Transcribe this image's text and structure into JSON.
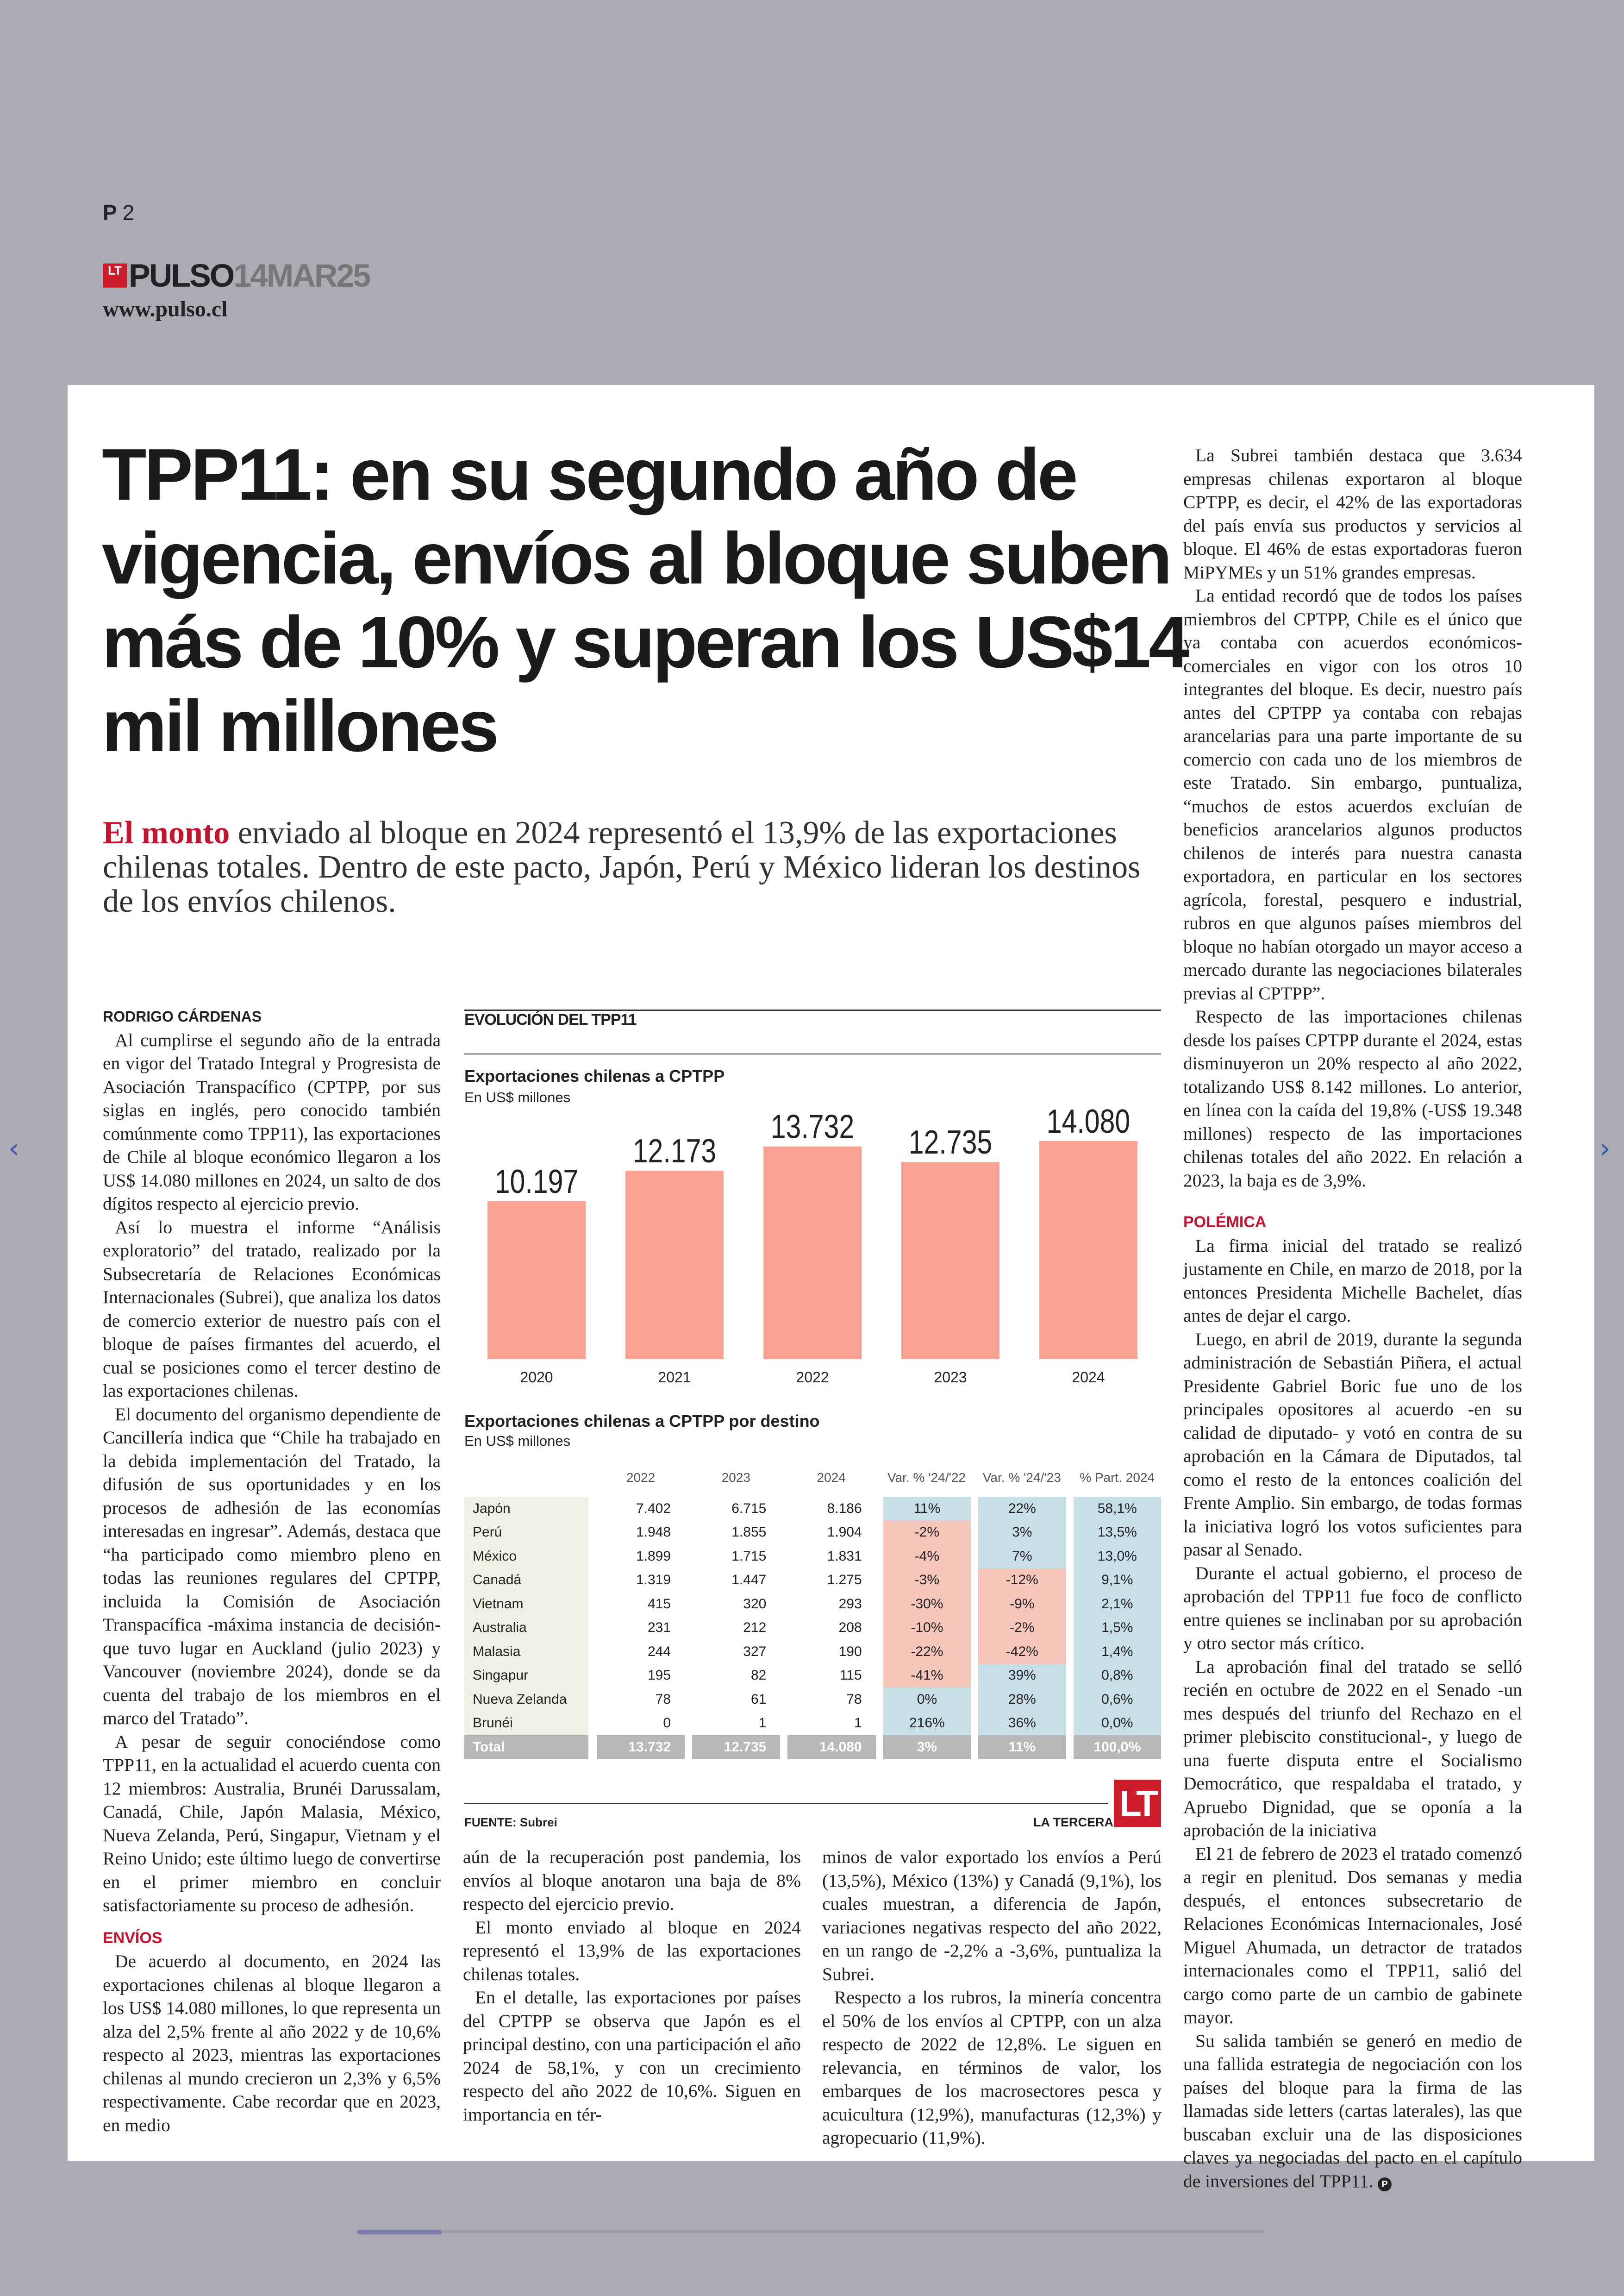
{
  "page": {
    "prefix": "P",
    "number": "2"
  },
  "masthead": {
    "logo": "LT",
    "name": "PULSO",
    "date": "14MAR25",
    "url": "www.pulso.cl"
  },
  "nav": {
    "prev_icon": "chevron-left-icon",
    "next_icon": "chevron-right-icon"
  },
  "article": {
    "headline": "TPP11: en su segundo año de vigencia, envíos al bloque suben más de 10% y superan los US$14 mil millones",
    "lead_bold": "El monto",
    "lead_rest": " enviado al bloque en 2024 representó el 13,9% de las exportaciones chilenas totales. Dentro de este pacto, Japón, Perú y México lideran los destinos de los envíos chilenos.",
    "byline": "RODRIGO CÁRDENAS",
    "col_left": [
      "Al cumplirse el segundo año de la entrada en vigor del Tratado Integral y Progresista de Asociación Transpacífico (CPTPP, por sus siglas en inglés, pero conocido también comúnmente como TPP11), las exportaciones de Chile al bloque económico llegaron a los US$ 14.080 millones en 2024, un salto de dos dígitos respecto al ejercicio previo.",
      "Así lo muestra el informe “Análisis exploratorio” del tratado, realizado por la Subsecretaría de Relaciones Económicas Internacionales (Subrei), que analiza los datos de comercio exterior de nuestro país con el bloque de países firmantes del acuerdo, el cual se posiciones como el tercer destino de las exportaciones chilenas.",
      "El documento del organismo dependiente de Cancillería indica que “Chile ha trabajado en la debida implementación del Tratado, la difusión de sus oportunidades y en los procesos de adhesión de las economías interesadas en ingresar”. Además, destaca que “ha participado como miembro pleno en todas las reuniones regulares del CPTPP, incluida la Comisión de Asociación Transpacífica -máxima instancia de decisión- que tuvo lugar en Auckland (julio 2023) y Vancouver (noviembre 2024), donde se da cuenta del trabajo de los miembros en el marco del Tratado”.",
      "A pesar de seguir conociéndose como TPP11, en la actualidad el acuerdo cuenta con 12 miembros: Australia, Brunéi Darussalam, Canadá, Chile, Japón Malasia, México, Nueva Zelanda, Perú, Singapur, Vietnam y el Reino Unido; este último luego de convertirse en el primer miembro en concluir satisfactoriamente su proceso de adhesión."
    ],
    "sub_envios": "ENVÍOS",
    "col_left_2": "De acuerdo al documento, en 2024 las exportaciones chilenas al bloque llegaron a los US$ 14.080 millones, lo que representa un alza del 2,5% frente al año 2022 y de 10,6% respecto al 2023, mientras las exportaciones chilenas al mundo crecieron un 2,3% y 6,5% respectivamente. Cabe recordar que en 2023, en medio",
    "col_mid_1": [
      "aún de la recuperación post pandemia, los envíos al bloque anotaron una baja de 8% respecto del ejercicio previo.",
      "El monto enviado al bloque en 2024 representó el 13,9% de las exportaciones chilenas totales.",
      "En el detalle, las exportaciones por países del CPTPP se observa que Japón es el principal destino, con una participación el año 2024 de 58,1%, y con un crecimiento respecto del año 2022 de 10,6%. Siguen en importancia en tér-"
    ],
    "col_mid_2": [
      "minos de valor exportado los envíos a Perú (13,5%), México (13%) y Canadá (9,1%), los cuales muestran, a diferencia de Japón, variaciones negativas respecto del año 2022, en un rango de -2,2% a -3,6%, puntualiza la Subrei.",
      "Respecto a los rubros, la minería concentra el 50% de los envíos al CPTPP, con un alza respecto de 2022 de 12,8%. Le siguen en relevancia, en términos de valor, los embarques de los macrosectores pesca y acuicultura (12,9%), manufacturas (12,3%) y agropecuario (11,9%)."
    ],
    "col_right": [
      "La Subrei también destaca que 3.634 empresas chilenas exportaron al bloque CPTPP, es decir, el 42% de las exportadoras del país envía sus productos y servicios al bloque. El 46% de estas exportadoras fueron MiPYMEs y un 51% grandes empresas.",
      "La entidad recordó que de todos los países miembros del CPTPP, Chile es el único que ya contaba con acuerdos económicos-comerciales en vigor con los otros 10 integrantes del bloque. Es decir, nuestro país antes del CPTPP ya contaba con rebajas arancelarias para una parte importante de su comercio con cada uno de los miembros de este Tratado. Sin embargo, puntualiza, “muchos de estos acuerdos excluían de beneficios arancelarios algunos productos chilenos de interés para nuestra canasta exportadora, en particular en los sectores agrícola, forestal, pesquero e industrial, rubros en que algunos países miembros del bloque no habían otorgado un mayor acceso a mercado durante las negociaciones bilaterales previas al CPTPP”.",
      "Respecto de las importaciones chilenas desde los países CPTPP durante el 2024, estas disminuyeron un 20% respecto al año 2022, totalizando US$ 8.142 millones. Lo anterior, en línea con la caída del 19,8% (-US$ 19.348 millones) respecto de las importaciones chilenas totales del año 2022. En relación a 2023, la baja es de 3,9%."
    ],
    "sub_polemica": "POLÉMICA",
    "col_right_2": [
      "La firma inicial del tratado se realizó justamente en Chile, en marzo de 2018, por la entonces Presidenta Michelle Bachelet, días antes de dejar el cargo.",
      "Luego, en abril de 2019, durante la segunda administración de Sebastián Piñera, el actual Presidente Gabriel Boric fue uno de los principales opositores al acuerdo -en su calidad de diputado- y votó en contra de su aprobación en la Cámara de Diputados, tal como el resto de la entonces coalición del Frente Amplio. Sin embargo, de todas formas la iniciativa logró los votos suficientes para pasar al Senado.",
      "Durante el actual gobierno, el proceso de aprobación del TPP11 fue foco de conflicto entre quienes se inclinaban por su aprobación y otro sector más crítico.",
      "La aprobación final del tratado se selló recién en octubre de 2022 en el Senado -un mes después del triunfo del Rechazo en el primer plebiscito constitucional-, y luego de una fuerte disputa entre el Socialismo Democrático, que respaldaba el tratado, y Apruebo Dignidad, que se oponía a la aprobación de la iniciativa",
      "El 21 de febrero de 2023 el tratado comenzó a regir en plenitud. Dos semanas y media después, el entonces subsecretario de Relaciones Económicas Internacionales, José Miguel Ahumada, un detractor de tratados internacionales como el TPP11, salió del cargo como parte de un cambio de gabinete mayor.",
      "Su salida también se generó en medio de una fallida estrategia de negociación con los países del bloque para la firma de las llamadas side letters (cartas laterales), las que buscaban excluir una de las disposiciones claves ya negociadas del pacto en el capítulo de inversiones del TPP11."
    ],
    "end_mark": "P"
  },
  "infographic": {
    "title": "EVOLUCIÓN DEL TPP11",
    "chart1_title": "Exportaciones chilenas a CPTPP",
    "chart1_unit": "En US$ millones",
    "chart2_title": "Exportaciones chilenas a CPTPP por destino",
    "chart2_unit": "En US$ millones",
    "source": "FUENTE: Subrei",
    "credit": "LA TERCERA",
    "credit_logo": "LT",
    "bar_color": "#f9a395",
    "table": {
      "headers": [
        "2022",
        "2023",
        "2024",
        "Var. % '24/'22",
        "Var. % '24/'23",
        "% Part. 2024"
      ],
      "rows": [
        [
          "Japón",
          "7.402",
          "6.715",
          "8.186",
          "11%",
          "22%",
          "58,1%"
        ],
        [
          "Perú",
          "1.948",
          "1.855",
          "1.904",
          "-2%",
          "3%",
          "13,5%"
        ],
        [
          "México",
          "1.899",
          "1.715",
          "1.831",
          "-4%",
          "7%",
          "13,0%"
        ],
        [
          "Canadá",
          "1.319",
          "1.447",
          "1.275",
          "-3%",
          "-12%",
          "9,1%"
        ],
        [
          "Vietnam",
          "415",
          "320",
          "293",
          "-30%",
          "-9%",
          "2,1%"
        ],
        [
          "Australia",
          "231",
          "212",
          "208",
          "-10%",
          "-2%",
          "1,5%"
        ],
        [
          "Malasia",
          "244",
          "327",
          "190",
          "-22%",
          "-42%",
          "1,4%"
        ],
        [
          "Singapur",
          "195",
          "82",
          "115",
          "-41%",
          "39%",
          "0,8%"
        ],
        [
          "Nueva Zelanda",
          "78",
          "61",
          "78",
          "0%",
          "28%",
          "0,6%"
        ],
        [
          "Brunéi",
          "0",
          "1",
          "1",
          "216%",
          "36%",
          "0,0%"
        ]
      ],
      "total": [
        "Total",
        "13.732",
        "12.735",
        "14.080",
        "3%",
        "11%",
        "100,0%"
      ]
    }
  },
  "chart_data": {
    "type": "bar",
    "title": "Exportaciones chilenas a CPTPP",
    "ylabel": "En US$ millones",
    "categories": [
      "2020",
      "2021",
      "2022",
      "2023",
      "2024"
    ],
    "values": [
      10197,
      12173,
      13732,
      12735,
      14080
    ],
    "value_labels": [
      "10.197",
      "12.173",
      "13.732",
      "12.735",
      "14.080"
    ],
    "ylim": [
      0,
      14500
    ],
    "grid": false,
    "color": "#f9a395"
  }
}
